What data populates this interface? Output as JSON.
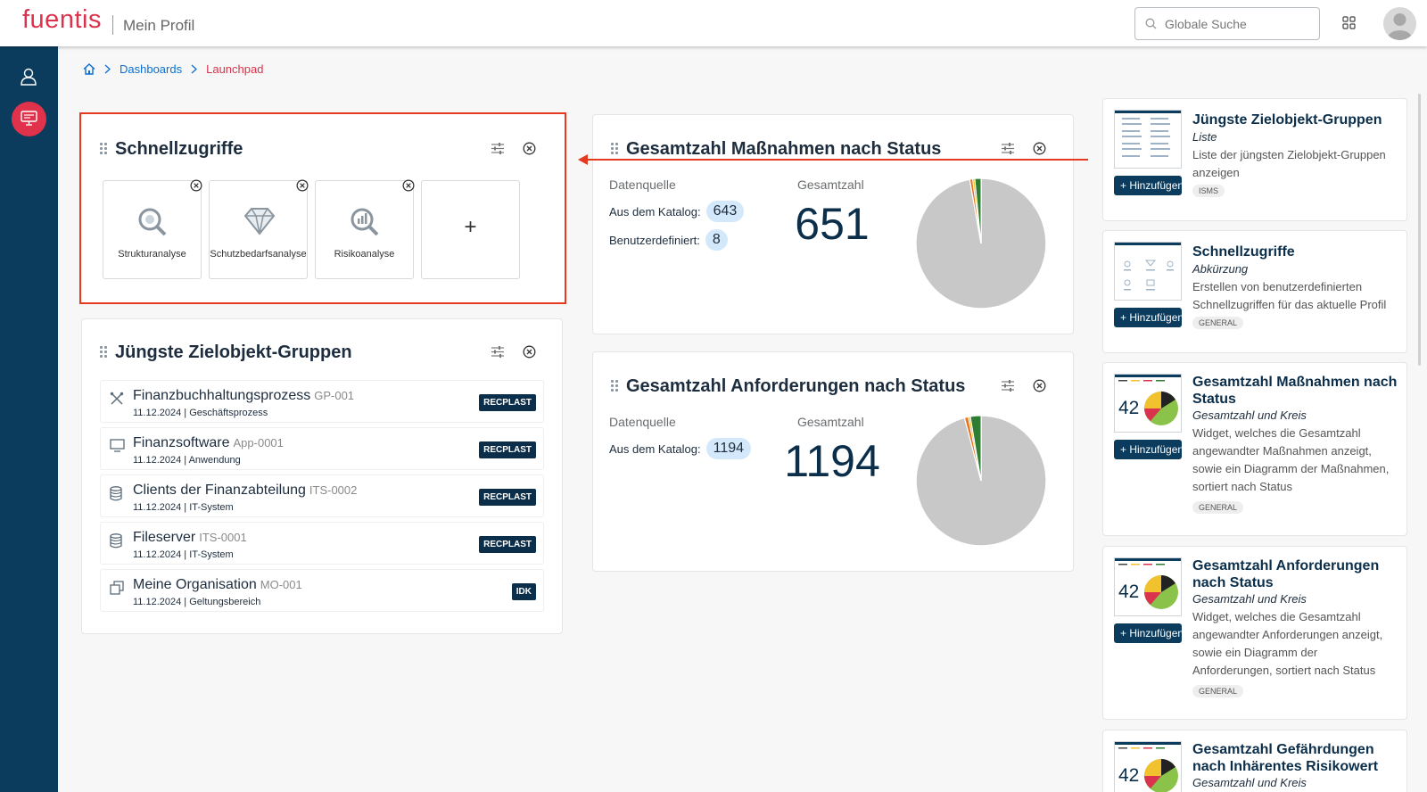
{
  "header": {
    "logo": "fuentis",
    "app_title": "Mein Profil",
    "search_placeholder": "Globale Suche"
  },
  "breadcrumb": {
    "items": [
      "Dashboards",
      "Launchpad"
    ]
  },
  "schnellzugriffe": {
    "title": "Schnellzugriffe",
    "tiles": [
      {
        "label": "Strukturanalyse",
        "icon": "structure-analysis-icon"
      },
      {
        "label": "Schutzbedarfsanalyse",
        "icon": "diamond-icon"
      },
      {
        "label": "Risikoanalyse",
        "icon": "risk-analysis-icon"
      }
    ],
    "add_label": "+"
  },
  "zielobjekt": {
    "title": "Jüngste Zielobjekt-Gruppen",
    "rows": [
      {
        "name": "Finanzbuchhaltungsprozess",
        "code": "GP-001",
        "sub": "11.12.2024 | Geschäftsprozess",
        "badge": "RECPLAST",
        "icon": "process-icon"
      },
      {
        "name": "Finanzsoftware",
        "code": "App-0001",
        "sub": "11.12.2024 | Anwendung",
        "badge": "RECPLAST",
        "icon": "monitor-icon"
      },
      {
        "name": "Clients der Finanzabteilung",
        "code": "ITS-0002",
        "sub": "11.12.2024 | IT-System",
        "badge": "RECPLAST",
        "icon": "database-icon"
      },
      {
        "name": "Fileserver",
        "code": "ITS-0001",
        "sub": "11.12.2024 | IT-System",
        "badge": "RECPLAST",
        "icon": "database-icon"
      },
      {
        "name": "Meine Organisation",
        "code": "MO-001",
        "sub": "11.12.2024 | Geltungsbereich",
        "badge": "IDK",
        "icon": "copy-icon"
      }
    ]
  },
  "massnahmen": {
    "title": "Gesamtzahl Maßnahmen nach Status",
    "source_label": "Datenquelle",
    "total_label": "Gesamtzahl",
    "catalog_label": "Aus dem Katalog:",
    "catalog_value": "643",
    "custom_label": "Benutzerdefiniert:",
    "custom_value": "8",
    "total": "651"
  },
  "anforderungen": {
    "title": "Gesamtzahl Anforderungen nach Status",
    "source_label": "Datenquelle",
    "total_label": "Gesamtzahl",
    "catalog_label": "Aus dem Katalog:",
    "catalog_value": "1194",
    "total": "1194"
  },
  "widgets": {
    "add_label": "Hinzufügen",
    "items": [
      {
        "title": "Jüngste Zielobjekt-Gruppen",
        "subtitle": "Liste",
        "desc": "Liste der jüngsten Zielobjekt-Gruppen anzeigen",
        "tag": "ISMS"
      },
      {
        "title": "Schnellzugriffe",
        "subtitle": "Abkürzung",
        "desc": "Erstellen von benutzerdefinierten Schnellzugriffen für das aktuelle Profil",
        "tag": "GENERAL"
      },
      {
        "title": "Gesamtzahl Maßnahmen nach Status",
        "subtitle": "Gesamtzahl und Kreis",
        "desc": "Widget, welches die Gesamtzahl angewandter Maßnahmen anzeigt, sowie ein Diagramm der Maßnahmen, sortiert nach Status",
        "tag": "GENERAL",
        "thumb_number": "42"
      },
      {
        "title": "Gesamtzahl Anforderungen nach Status",
        "subtitle": "Gesamtzahl und Kreis",
        "desc": "Widget, welches die Gesamtzahl angewandter Anforderungen anzeigt, sowie ein Diagramm der Anforderungen, sortiert nach Status",
        "tag": "GENERAL",
        "thumb_number": "42"
      },
      {
        "title": "Gesamtzahl Gefährdungen nach Inhärentes Risikowert",
        "subtitle": "Gesamtzahl und Kreis",
        "thumb_number": "42"
      }
    ]
  },
  "colors": {
    "brand": "#d9334d",
    "sidebar": "#0b3c5d",
    "highlight": "#e53a1f",
    "pie_gray": "#c8c8c8",
    "pie_green": "#2e7d32",
    "pie_orange": "#e8741e",
    "pie_yellow": "#f2c12e"
  }
}
